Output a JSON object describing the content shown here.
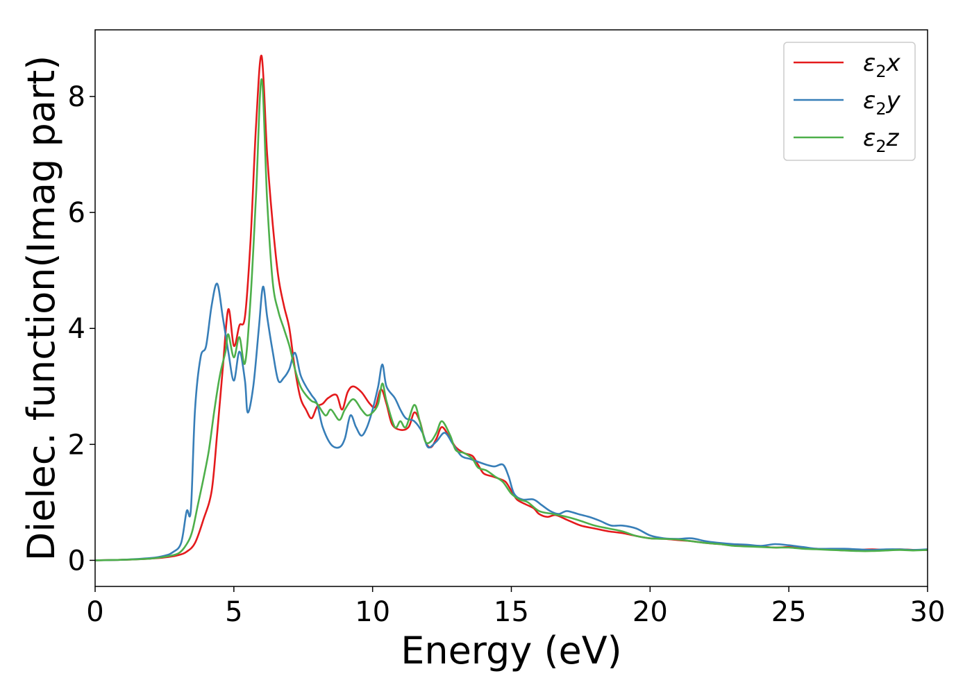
{
  "chart_data": {
    "type": "line",
    "title": "",
    "xlabel": "Energy (eV)",
    "ylabel": "Dielec. function(Imag part)",
    "xlim": [
      0,
      30
    ],
    "ylim": [
      -0.45,
      9.15
    ],
    "xticks": [
      0,
      5,
      10,
      15,
      20,
      25,
      30
    ],
    "yticks": [
      0,
      2,
      4,
      6,
      8
    ],
    "grid": false,
    "legend_position": "top-right",
    "series": [
      {
        "name": "ε₂x",
        "legend": {
          "base": "ε",
          "sub": "2",
          "suffix": "x"
        },
        "color": "#e41a1c",
        "points": [
          [
            0,
            0.0
          ],
          [
            1,
            0.01
          ],
          [
            2,
            0.03
          ],
          [
            2.5,
            0.05
          ],
          [
            3,
            0.09
          ],
          [
            3.3,
            0.15
          ],
          [
            3.6,
            0.3
          ],
          [
            3.9,
            0.7
          ],
          [
            4.2,
            1.2
          ],
          [
            4.4,
            2.2
          ],
          [
            4.6,
            3.3
          ],
          [
            4.8,
            4.33
          ],
          [
            5.0,
            3.7
          ],
          [
            5.2,
            4.05
          ],
          [
            5.4,
            4.2
          ],
          [
            5.6,
            5.5
          ],
          [
            5.8,
            7.5
          ],
          [
            6.0,
            8.7
          ],
          [
            6.2,
            7.0
          ],
          [
            6.4,
            5.8
          ],
          [
            6.6,
            4.9
          ],
          [
            6.8,
            4.4
          ],
          [
            7.0,
            4.0
          ],
          [
            7.2,
            3.3
          ],
          [
            7.4,
            2.8
          ],
          [
            7.6,
            2.6
          ],
          [
            7.8,
            2.45
          ],
          [
            8.0,
            2.65
          ],
          [
            8.2,
            2.7
          ],
          [
            8.4,
            2.8
          ],
          [
            8.7,
            2.85
          ],
          [
            8.9,
            2.6
          ],
          [
            9.1,
            2.9
          ],
          [
            9.3,
            3.0
          ],
          [
            9.6,
            2.9
          ],
          [
            9.9,
            2.7
          ],
          [
            10.1,
            2.65
          ],
          [
            10.3,
            2.95
          ],
          [
            10.5,
            2.7
          ],
          [
            10.7,
            2.35
          ],
          [
            11.0,
            2.25
          ],
          [
            11.3,
            2.3
          ],
          [
            11.5,
            2.55
          ],
          [
            11.7,
            2.4
          ],
          [
            11.9,
            2.05
          ],
          [
            12.1,
            1.95
          ],
          [
            12.3,
            2.1
          ],
          [
            12.5,
            2.3
          ],
          [
            12.8,
            2.1
          ],
          [
            13.0,
            1.95
          ],
          [
            13.3,
            1.85
          ],
          [
            13.6,
            1.8
          ],
          [
            13.8,
            1.65
          ],
          [
            14.0,
            1.5
          ],
          [
            14.3,
            1.45
          ],
          [
            14.6,
            1.4
          ],
          [
            14.8,
            1.35
          ],
          [
            15.0,
            1.2
          ],
          [
            15.2,
            1.05
          ],
          [
            15.5,
            0.97
          ],
          [
            15.8,
            0.9
          ],
          [
            16.0,
            0.8
          ],
          [
            16.3,
            0.75
          ],
          [
            16.6,
            0.78
          ],
          [
            17.0,
            0.7
          ],
          [
            17.5,
            0.6
          ],
          [
            18,
            0.55
          ],
          [
            18.5,
            0.5
          ],
          [
            19,
            0.47
          ],
          [
            19.5,
            0.42
          ],
          [
            20,
            0.38
          ],
          [
            20.5,
            0.37
          ],
          [
            21,
            0.35
          ],
          [
            21.5,
            0.33
          ],
          [
            22,
            0.3
          ],
          [
            22.5,
            0.28
          ],
          [
            23,
            0.26
          ],
          [
            23.5,
            0.25
          ],
          [
            24,
            0.24
          ],
          [
            24.5,
            0.22
          ],
          [
            25,
            0.23
          ],
          [
            25.5,
            0.21
          ],
          [
            26,
            0.2
          ],
          [
            26.5,
            0.19
          ],
          [
            27,
            0.17
          ],
          [
            27.5,
            0.18
          ],
          [
            28,
            0.19
          ],
          [
            28.5,
            0.18
          ],
          [
            29,
            0.19
          ],
          [
            29.5,
            0.18
          ],
          [
            30,
            0.18
          ]
        ]
      },
      {
        "name": "ε₂y",
        "legend": {
          "base": "ε",
          "sub": "2",
          "suffix": "y"
        },
        "color": "#377eb8",
        "points": [
          [
            0,
            0.0
          ],
          [
            1,
            0.01
          ],
          [
            2,
            0.04
          ],
          [
            2.5,
            0.08
          ],
          [
            2.8,
            0.14
          ],
          [
            3.1,
            0.3
          ],
          [
            3.3,
            0.85
          ],
          [
            3.45,
            0.87
          ],
          [
            3.6,
            2.6
          ],
          [
            3.8,
            3.5
          ],
          [
            4.0,
            3.7
          ],
          [
            4.2,
            4.4
          ],
          [
            4.4,
            4.77
          ],
          [
            4.6,
            4.2
          ],
          [
            4.8,
            3.6
          ],
          [
            5.0,
            3.1
          ],
          [
            5.2,
            3.6
          ],
          [
            5.4,
            3.1
          ],
          [
            5.5,
            2.55
          ],
          [
            5.7,
            3.0
          ],
          [
            5.9,
            4.0
          ],
          [
            6.05,
            4.72
          ],
          [
            6.2,
            4.2
          ],
          [
            6.4,
            3.6
          ],
          [
            6.6,
            3.1
          ],
          [
            6.8,
            3.15
          ],
          [
            7.0,
            3.3
          ],
          [
            7.2,
            3.58
          ],
          [
            7.4,
            3.2
          ],
          [
            7.6,
            3.0
          ],
          [
            7.8,
            2.85
          ],
          [
            8.0,
            2.7
          ],
          [
            8.2,
            2.3
          ],
          [
            8.5,
            2.0
          ],
          [
            8.8,
            1.95
          ],
          [
            9.0,
            2.1
          ],
          [
            9.2,
            2.5
          ],
          [
            9.4,
            2.3
          ],
          [
            9.6,
            2.15
          ],
          [
            9.8,
            2.3
          ],
          [
            10.0,
            2.6
          ],
          [
            10.2,
            3.0
          ],
          [
            10.35,
            3.38
          ],
          [
            10.5,
            3.0
          ],
          [
            10.8,
            2.8
          ],
          [
            11.0,
            2.6
          ],
          [
            11.2,
            2.45
          ],
          [
            11.5,
            2.4
          ],
          [
            11.8,
            2.2
          ],
          [
            12.0,
            1.95
          ],
          [
            12.3,
            2.05
          ],
          [
            12.6,
            2.2
          ],
          [
            12.9,
            2.0
          ],
          [
            13.2,
            1.8
          ],
          [
            13.5,
            1.75
          ],
          [
            13.8,
            1.7
          ],
          [
            14.1,
            1.65
          ],
          [
            14.4,
            1.62
          ],
          [
            14.7,
            1.65
          ],
          [
            14.9,
            1.45
          ],
          [
            15.1,
            1.15
          ],
          [
            15.4,
            1.05
          ],
          [
            15.8,
            1.05
          ],
          [
            16.1,
            0.95
          ],
          [
            16.4,
            0.85
          ],
          [
            16.7,
            0.8
          ],
          [
            17.0,
            0.85
          ],
          [
            17.4,
            0.8
          ],
          [
            17.8,
            0.75
          ],
          [
            18.2,
            0.68
          ],
          [
            18.6,
            0.6
          ],
          [
            19.0,
            0.6
          ],
          [
            19.5,
            0.55
          ],
          [
            20,
            0.43
          ],
          [
            20.5,
            0.38
          ],
          [
            21,
            0.37
          ],
          [
            21.5,
            0.38
          ],
          [
            22,
            0.33
          ],
          [
            22.5,
            0.3
          ],
          [
            23,
            0.28
          ],
          [
            23.5,
            0.27
          ],
          [
            24,
            0.25
          ],
          [
            24.5,
            0.28
          ],
          [
            25,
            0.26
          ],
          [
            25.5,
            0.23
          ],
          [
            26,
            0.2
          ],
          [
            26.5,
            0.2
          ],
          [
            27,
            0.2
          ],
          [
            27.5,
            0.19
          ],
          [
            28,
            0.18
          ],
          [
            28.5,
            0.19
          ],
          [
            29,
            0.19
          ],
          [
            29.5,
            0.18
          ],
          [
            30,
            0.19
          ]
        ]
      },
      {
        "name": "ε₂z",
        "legend": {
          "base": "ε",
          "sub": "2",
          "suffix": "z"
        },
        "color": "#4daf4a",
        "points": [
          [
            0,
            0.0
          ],
          [
            1,
            0.01
          ],
          [
            2,
            0.03
          ],
          [
            2.5,
            0.06
          ],
          [
            3,
            0.12
          ],
          [
            3.3,
            0.28
          ],
          [
            3.5,
            0.5
          ],
          [
            3.7,
            0.95
          ],
          [
            3.9,
            1.4
          ],
          [
            4.1,
            1.9
          ],
          [
            4.3,
            2.6
          ],
          [
            4.5,
            3.2
          ],
          [
            4.7,
            3.6
          ],
          [
            4.8,
            3.9
          ],
          [
            5.0,
            3.5
          ],
          [
            5.2,
            3.85
          ],
          [
            5.4,
            3.4
          ],
          [
            5.6,
            4.5
          ],
          [
            5.8,
            6.3
          ],
          [
            6.0,
            8.3
          ],
          [
            6.2,
            6.2
          ],
          [
            6.4,
            4.8
          ],
          [
            6.6,
            4.3
          ],
          [
            6.8,
            4.0
          ],
          [
            7.0,
            3.7
          ],
          [
            7.2,
            3.3
          ],
          [
            7.4,
            3.0
          ],
          [
            7.6,
            2.85
          ],
          [
            7.8,
            2.75
          ],
          [
            8.0,
            2.7
          ],
          [
            8.3,
            2.5
          ],
          [
            8.5,
            2.6
          ],
          [
            8.8,
            2.42
          ],
          [
            9.0,
            2.6
          ],
          [
            9.3,
            2.78
          ],
          [
            9.6,
            2.6
          ],
          [
            9.8,
            2.5
          ],
          [
            10.0,
            2.55
          ],
          [
            10.2,
            2.7
          ],
          [
            10.35,
            3.05
          ],
          [
            10.5,
            2.75
          ],
          [
            10.8,
            2.3
          ],
          [
            11.0,
            2.4
          ],
          [
            11.2,
            2.3
          ],
          [
            11.5,
            2.68
          ],
          [
            11.7,
            2.4
          ],
          [
            11.9,
            2.05
          ],
          [
            12.1,
            2.05
          ],
          [
            12.3,
            2.2
          ],
          [
            12.5,
            2.4
          ],
          [
            12.8,
            2.15
          ],
          [
            13.0,
            1.9
          ],
          [
            13.3,
            1.85
          ],
          [
            13.6,
            1.75
          ],
          [
            13.8,
            1.6
          ],
          [
            14.1,
            1.55
          ],
          [
            14.4,
            1.45
          ],
          [
            14.7,
            1.35
          ],
          [
            15.0,
            1.15
          ],
          [
            15.3,
            1.05
          ],
          [
            15.6,
            1.0
          ],
          [
            16.0,
            0.85
          ],
          [
            16.5,
            0.8
          ],
          [
            17.0,
            0.75
          ],
          [
            17.5,
            0.68
          ],
          [
            18,
            0.6
          ],
          [
            18.5,
            0.55
          ],
          [
            19,
            0.5
          ],
          [
            19.5,
            0.42
          ],
          [
            20,
            0.38
          ],
          [
            20.5,
            0.37
          ],
          [
            21,
            0.36
          ],
          [
            21.5,
            0.33
          ],
          [
            22,
            0.3
          ],
          [
            22.5,
            0.28
          ],
          [
            23,
            0.25
          ],
          [
            23.5,
            0.24
          ],
          [
            24,
            0.23
          ],
          [
            24.5,
            0.22
          ],
          [
            25,
            0.22
          ],
          [
            25.5,
            0.2
          ],
          [
            26,
            0.19
          ],
          [
            26.5,
            0.18
          ],
          [
            27,
            0.17
          ],
          [
            27.5,
            0.16
          ],
          [
            28,
            0.16
          ],
          [
            28.5,
            0.17
          ],
          [
            29,
            0.18
          ],
          [
            29.5,
            0.17
          ],
          [
            30,
            0.18
          ]
        ]
      }
    ]
  }
}
